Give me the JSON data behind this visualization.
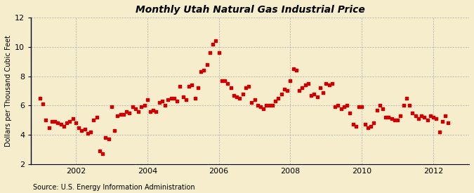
{
  "title": "Monthly Utah Natural Gas Industrial Price",
  "ylabel": "Dollars per Thousand Cubic Feet",
  "source": "Source: U.S. Energy Information Administration",
  "background_color": "#f5edcc",
  "dot_color": "#cc0000",
  "ylim": [
    2,
    12
  ],
  "yticks": [
    2,
    4,
    6,
    8,
    10,
    12
  ],
  "xticks_years": [
    2002,
    2004,
    2006,
    2008,
    2010,
    2012
  ],
  "xlim": [
    2000.75,
    2013.0
  ],
  "data": [
    [
      2001.0,
      6.5
    ],
    [
      2001.083,
      6.1
    ],
    [
      2001.167,
      5.0
    ],
    [
      2001.25,
      4.5
    ],
    [
      2001.333,
      4.9
    ],
    [
      2001.417,
      4.9
    ],
    [
      2001.5,
      4.8
    ],
    [
      2001.583,
      4.7
    ],
    [
      2001.667,
      4.6
    ],
    [
      2001.75,
      4.8
    ],
    [
      2001.833,
      4.9
    ],
    [
      2001.917,
      5.1
    ],
    [
      2002.0,
      4.8
    ],
    [
      2002.083,
      4.5
    ],
    [
      2002.167,
      4.3
    ],
    [
      2002.25,
      4.4
    ],
    [
      2002.333,
      4.1
    ],
    [
      2002.417,
      4.2
    ],
    [
      2002.5,
      5.0
    ],
    [
      2002.583,
      5.2
    ],
    [
      2002.667,
      2.9
    ],
    [
      2002.75,
      2.7
    ],
    [
      2002.833,
      3.8
    ],
    [
      2002.917,
      3.7
    ],
    [
      2003.0,
      5.9
    ],
    [
      2003.083,
      4.3
    ],
    [
      2003.167,
      5.3
    ],
    [
      2003.25,
      5.4
    ],
    [
      2003.333,
      5.4
    ],
    [
      2003.417,
      5.6
    ],
    [
      2003.5,
      5.5
    ],
    [
      2003.583,
      5.9
    ],
    [
      2003.667,
      5.8
    ],
    [
      2003.75,
      5.6
    ],
    [
      2003.833,
      5.9
    ],
    [
      2003.917,
      6.0
    ],
    [
      2004.0,
      6.4
    ],
    [
      2004.083,
      5.6
    ],
    [
      2004.167,
      5.7
    ],
    [
      2004.25,
      5.6
    ],
    [
      2004.333,
      6.2
    ],
    [
      2004.417,
      6.3
    ],
    [
      2004.5,
      6.0
    ],
    [
      2004.583,
      6.4
    ],
    [
      2004.667,
      6.5
    ],
    [
      2004.75,
      6.5
    ],
    [
      2004.833,
      6.3
    ],
    [
      2004.917,
      7.3
    ],
    [
      2005.0,
      6.6
    ],
    [
      2005.083,
      6.4
    ],
    [
      2005.167,
      7.3
    ],
    [
      2005.25,
      7.4
    ],
    [
      2005.333,
      6.5
    ],
    [
      2005.417,
      7.2
    ],
    [
      2005.5,
      8.3
    ],
    [
      2005.583,
      8.4
    ],
    [
      2005.667,
      8.8
    ],
    [
      2005.75,
      9.6
    ],
    [
      2005.833,
      10.2
    ],
    [
      2005.917,
      10.4
    ],
    [
      2006.0,
      9.6
    ],
    [
      2006.083,
      7.7
    ],
    [
      2006.167,
      7.7
    ],
    [
      2006.25,
      7.5
    ],
    [
      2006.333,
      7.2
    ],
    [
      2006.417,
      6.7
    ],
    [
      2006.5,
      6.6
    ],
    [
      2006.583,
      6.5
    ],
    [
      2006.667,
      6.8
    ],
    [
      2006.75,
      7.2
    ],
    [
      2006.833,
      7.3
    ],
    [
      2006.917,
      6.2
    ],
    [
      2007.0,
      6.4
    ],
    [
      2007.083,
      6.0
    ],
    [
      2007.167,
      5.9
    ],
    [
      2007.25,
      5.8
    ],
    [
      2007.333,
      6.0
    ],
    [
      2007.417,
      6.0
    ],
    [
      2007.5,
      6.0
    ],
    [
      2007.583,
      6.3
    ],
    [
      2007.667,
      6.5
    ],
    [
      2007.75,
      6.8
    ],
    [
      2007.833,
      7.1
    ],
    [
      2007.917,
      7.0
    ],
    [
      2008.0,
      7.7
    ],
    [
      2008.083,
      8.5
    ],
    [
      2008.167,
      8.4
    ],
    [
      2008.25,
      7.0
    ],
    [
      2008.333,
      7.2
    ],
    [
      2008.417,
      7.4
    ],
    [
      2008.5,
      7.5
    ],
    [
      2008.583,
      6.7
    ],
    [
      2008.667,
      6.8
    ],
    [
      2008.75,
      6.6
    ],
    [
      2008.833,
      7.2
    ],
    [
      2008.917,
      6.9
    ],
    [
      2009.0,
      7.5
    ],
    [
      2009.083,
      7.4
    ],
    [
      2009.167,
      7.5
    ],
    [
      2009.25,
      5.9
    ],
    [
      2009.333,
      6.0
    ],
    [
      2009.417,
      5.8
    ],
    [
      2009.5,
      5.9
    ],
    [
      2009.583,
      6.0
    ],
    [
      2009.667,
      5.5
    ],
    [
      2009.75,
      4.7
    ],
    [
      2009.833,
      4.6
    ],
    [
      2009.917,
      5.9
    ],
    [
      2010.0,
      5.9
    ],
    [
      2010.083,
      4.7
    ],
    [
      2010.167,
      4.5
    ],
    [
      2010.25,
      4.6
    ],
    [
      2010.333,
      4.8
    ],
    [
      2010.417,
      5.7
    ],
    [
      2010.5,
      6.0
    ],
    [
      2010.583,
      5.8
    ],
    [
      2010.667,
      5.2
    ],
    [
      2010.75,
      5.2
    ],
    [
      2010.833,
      5.1
    ],
    [
      2010.917,
      5.0
    ],
    [
      2011.0,
      5.0
    ],
    [
      2011.083,
      5.3
    ],
    [
      2011.167,
      6.0
    ],
    [
      2011.25,
      6.5
    ],
    [
      2011.333,
      6.0
    ],
    [
      2011.417,
      5.5
    ],
    [
      2011.5,
      5.3
    ],
    [
      2011.583,
      5.1
    ],
    [
      2011.667,
      5.3
    ],
    [
      2011.75,
      5.2
    ],
    [
      2011.833,
      5.0
    ],
    [
      2011.917,
      5.3
    ],
    [
      2012.0,
      5.2
    ],
    [
      2012.083,
      5.1
    ],
    [
      2012.167,
      4.2
    ],
    [
      2012.25,
      4.9
    ],
    [
      2012.333,
      5.3
    ],
    [
      2012.417,
      4.8
    ]
  ]
}
